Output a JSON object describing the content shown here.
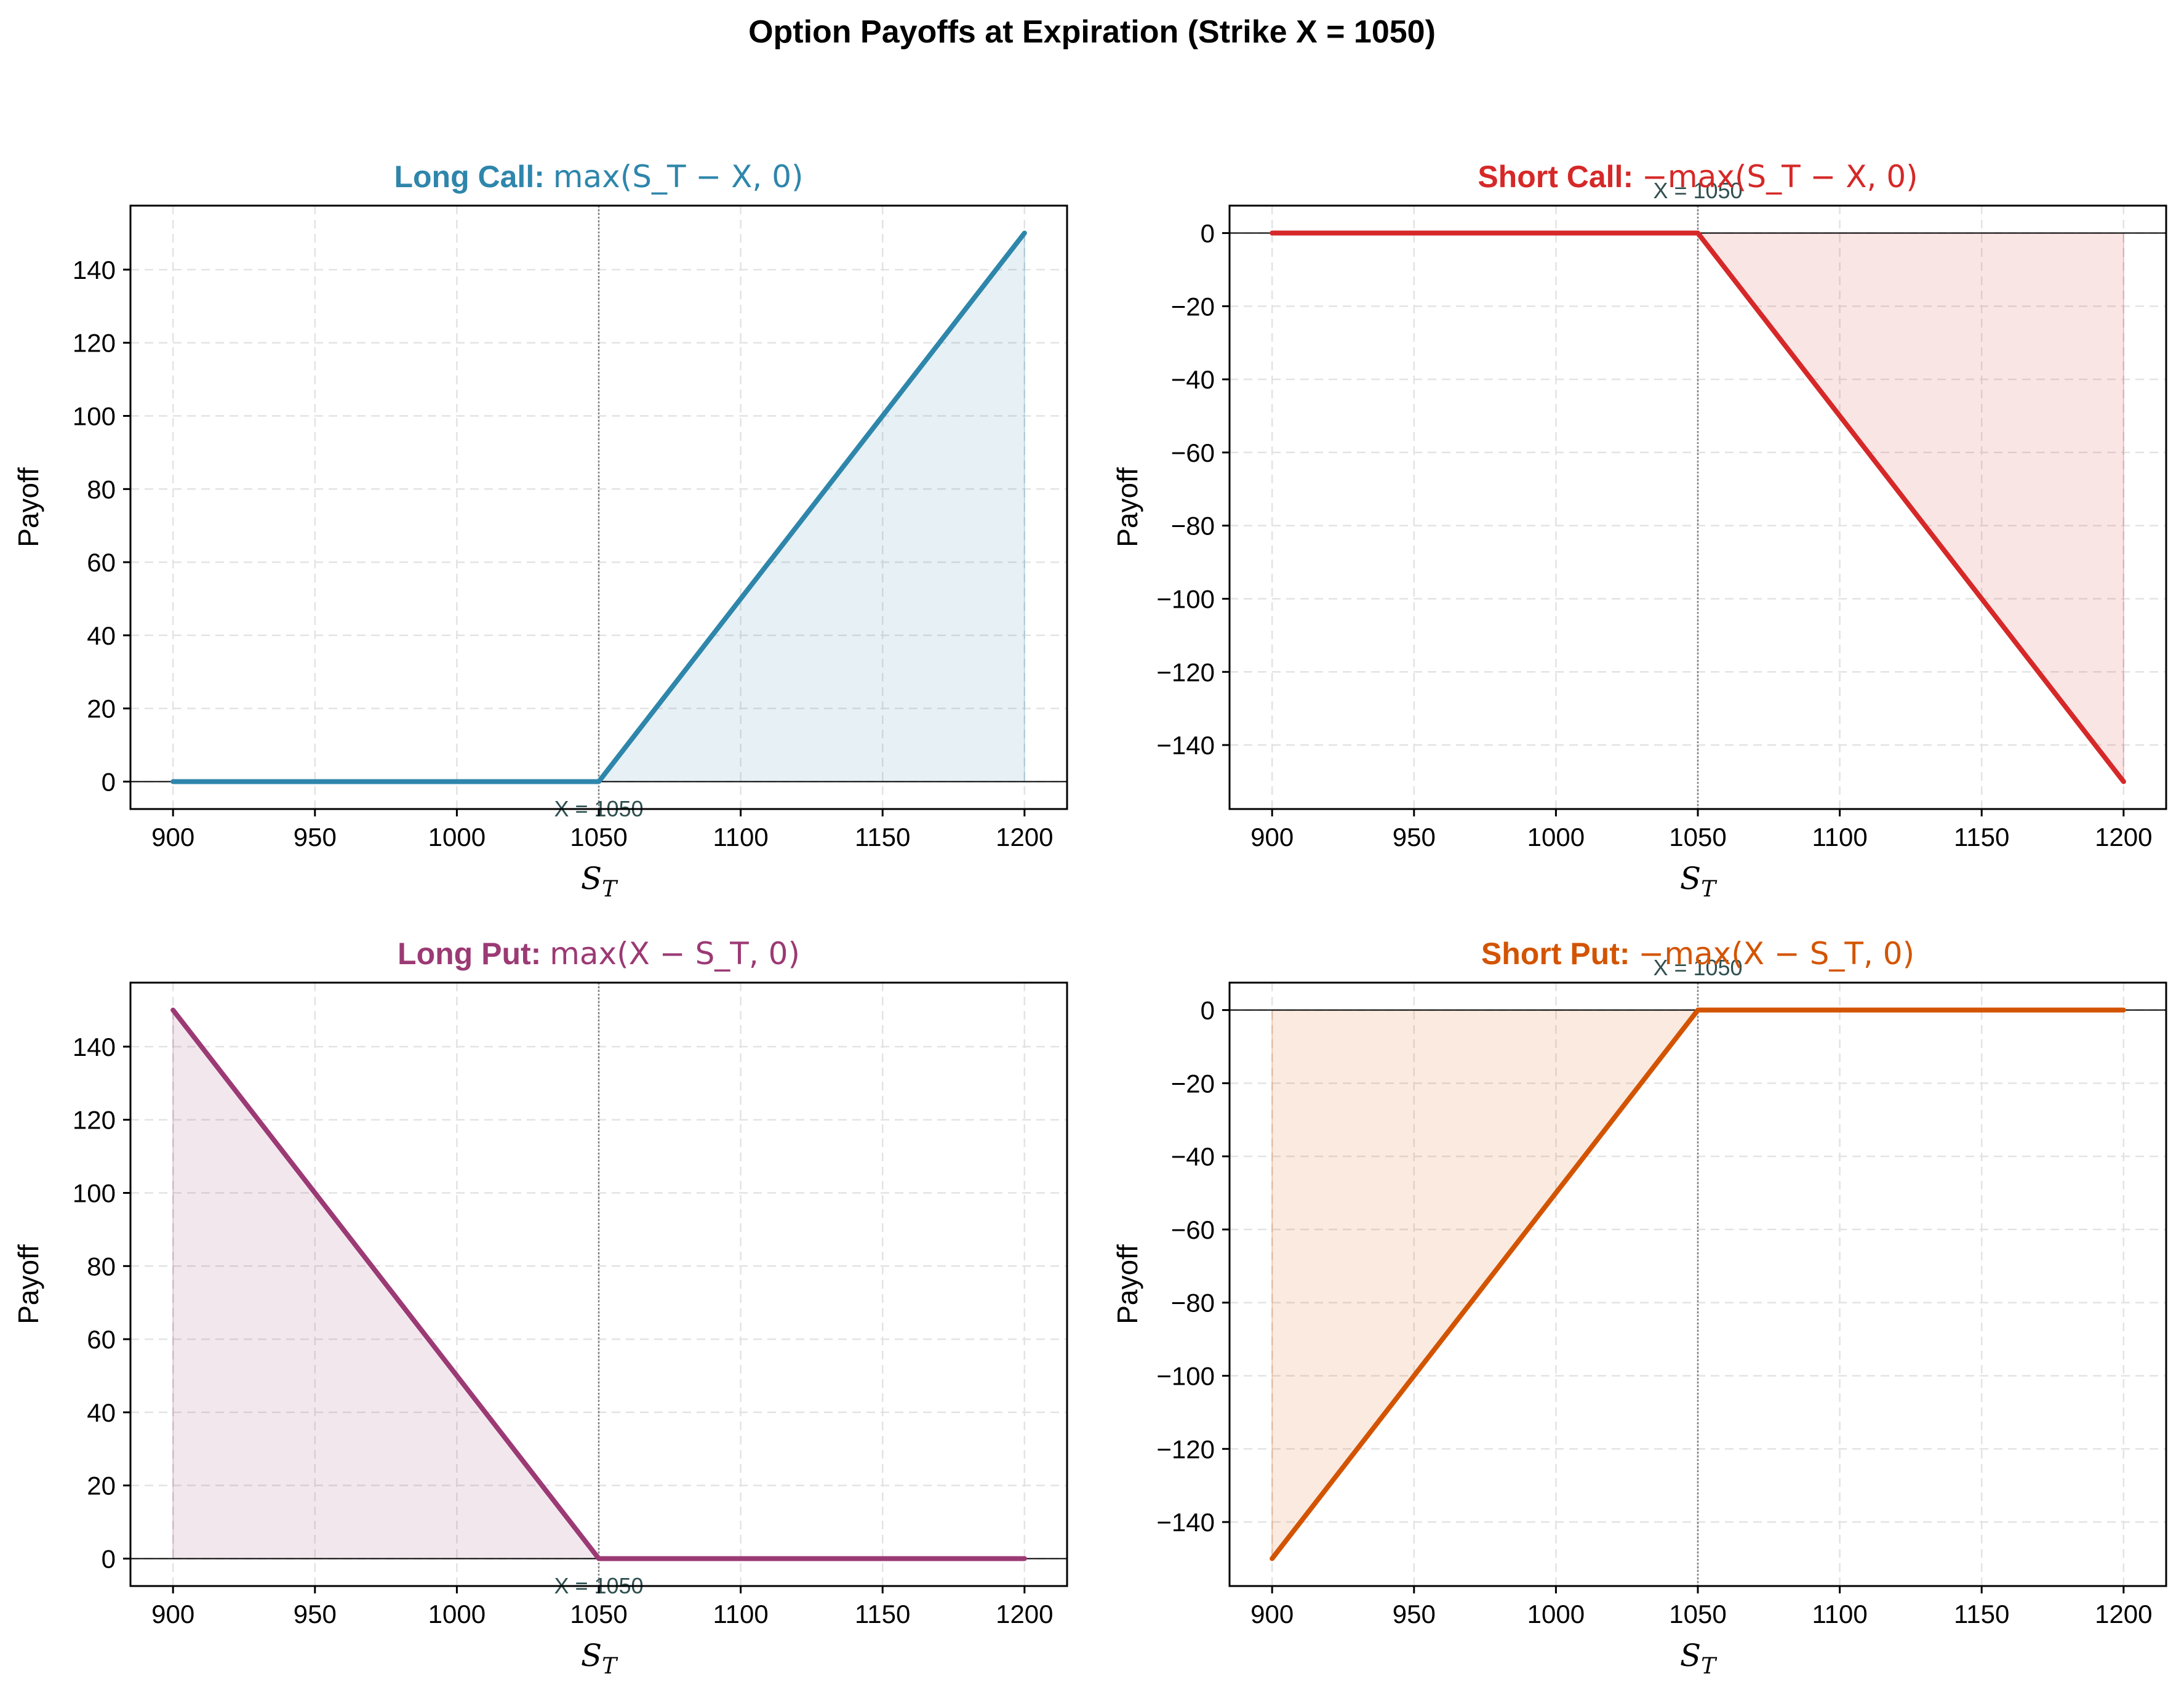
{
  "suptitle": "Option Payoffs at Expiration (Strike X = 1050)",
  "chart_data": [
    {
      "type": "line",
      "title_bold": "Long Call:",
      "title_formula": "max(S_T − X, 0)",
      "color": "#2e86ab",
      "x": [
        900,
        1050,
        1200
      ],
      "y": [
        0,
        0,
        150
      ],
      "xlabel": "S_T",
      "ylabel": "Payoff",
      "xlim": [
        885,
        1215
      ],
      "ylim": [
        -7.5,
        157.5
      ],
      "xticks": [
        900,
        950,
        1000,
        1050,
        1100,
        1150,
        1200
      ],
      "yticks": [
        0,
        20,
        40,
        60,
        80,
        100,
        120,
        140
      ],
      "strike": 1050,
      "strike_label": "X = 1050",
      "strike_label_position": "bottom",
      "grid": true
    },
    {
      "type": "line",
      "title_bold": "Short Call:",
      "title_formula": "−max(S_T − X, 0)",
      "color": "#d62828",
      "x": [
        900,
        1050,
        1200
      ],
      "y": [
        0,
        0,
        -150
      ],
      "xlabel": "S_T",
      "ylabel": "Payoff",
      "xlim": [
        885,
        1215
      ],
      "ylim": [
        -157.5,
        7.5
      ],
      "xticks": [
        900,
        950,
        1000,
        1050,
        1100,
        1150,
        1200
      ],
      "yticks": [
        0,
        -20,
        -40,
        -60,
        -80,
        -100,
        -120,
        -140
      ],
      "strike": 1050,
      "strike_label": "X = 1050",
      "strike_label_position": "top",
      "grid": true
    },
    {
      "type": "line",
      "title_bold": "Long Put:",
      "title_formula": "max(X − S_T, 0)",
      "color": "#9b3a74",
      "x": [
        900,
        1050,
        1200
      ],
      "y": [
        150,
        0,
        0
      ],
      "xlabel": "S_T",
      "ylabel": "Payoff",
      "xlim": [
        885,
        1215
      ],
      "ylim": [
        -7.5,
        157.5
      ],
      "xticks": [
        900,
        950,
        1000,
        1050,
        1100,
        1150,
        1200
      ],
      "yticks": [
        0,
        20,
        40,
        60,
        80,
        100,
        120,
        140
      ],
      "strike": 1050,
      "strike_label": "X = 1050",
      "strike_label_position": "bottom",
      "grid": true
    },
    {
      "type": "line",
      "title_bold": "Short Put:",
      "title_formula": "−max(X − S_T, 0)",
      "color": "#d35400",
      "x": [
        900,
        1050,
        1200
      ],
      "y": [
        -150,
        0,
        0
      ],
      "xlabel": "S_T",
      "ylabel": "Payoff",
      "xlim": [
        885,
        1215
      ],
      "ylim": [
        -157.5,
        7.5
      ],
      "xticks": [
        900,
        950,
        1000,
        1050,
        1100,
        1150,
        1200
      ],
      "yticks": [
        0,
        -20,
        -40,
        -60,
        -80,
        -100,
        -120,
        -140
      ],
      "strike": 1050,
      "strike_label": "X = 1050",
      "strike_label_position": "top",
      "grid": true
    }
  ]
}
